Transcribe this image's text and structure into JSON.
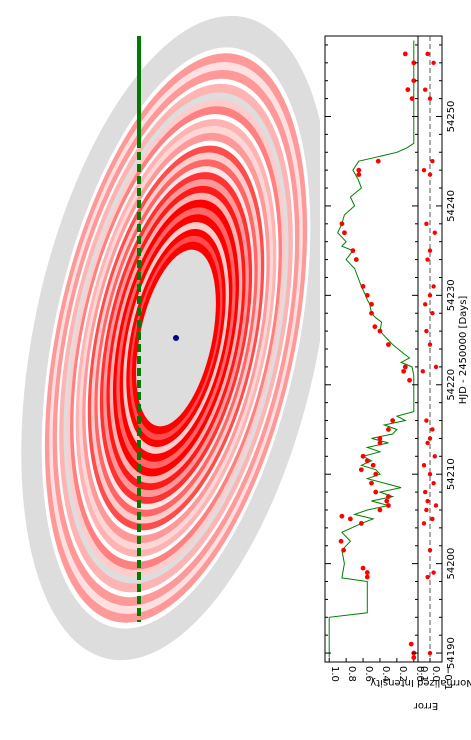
{
  "chart_data": [
    {
      "type": "diagram",
      "description_elements": [
        "ring-system",
        "star-dot",
        "transit-path"
      ],
      "colors": {
        "outer_disk": "#dddddd",
        "ring_light": "#ffd0d0",
        "ring_mid": "#ff9999",
        "ring_strong": "#ff0000",
        "ring_gap": "#ffffff",
        "star": "#000080",
        "path": "#007a00"
      }
    },
    {
      "type": "line",
      "orientation": "rotated-90",
      "xlabel": "HJD - 2450000 [Days]",
      "ylabel": "Normalized Intensity",
      "xlim": [
        54189,
        54259
      ],
      "ylim": [
        -0.05,
        1.05
      ],
      "x_ticks": [
        54190,
        54200,
        54210,
        54220,
        54230,
        54240,
        54250
      ],
      "y_ticks": [
        "0.0",
        "0.2",
        "0.4",
        "0.6",
        "0.8",
        "1.0"
      ],
      "series": [
        {
          "kind": "model",
          "color": "#008000",
          "x": [
            54189.5,
            54194.0,
            54194.5,
            54198.0,
            54198.4,
            54200.0,
            54201.5,
            54202.5,
            54203.5,
            54204.5,
            54205.0,
            54205.5,
            54206.0,
            54206.5,
            54207.0,
            54207.5,
            54208.0,
            54208.5,
            54209.0,
            54209.5,
            54210.0,
            54210.5,
            54211.0,
            54211.5,
            54212.0,
            54212.5,
            54213.0,
            54213.5,
            54214.0,
            54214.5,
            54215.0,
            54215.5,
            54216.0,
            54216.5,
            54217.0,
            54218.0,
            54219.0,
            54220.0,
            54221.0,
            54222.0,
            54222.5,
            54223.0,
            54223.5,
            54224.5,
            54225.0,
            54226.0,
            54227.0,
            54227.5,
            54228.0,
            54229.0,
            54229.5,
            54230.0,
            54231.0,
            54232.0,
            54233.0,
            54234.0,
            54235.0,
            54235.5,
            54236.0,
            54237.0,
            54238.0,
            54239.0,
            54240.0,
            54241.0,
            54242.0,
            54243.0,
            54244.0,
            54245.0,
            54245.5,
            54246.0,
            54246.5,
            54247.0,
            54258.5
          ],
          "y": [
            1.0,
            1.0,
            0.55,
            0.55,
            0.85,
            0.82,
            0.85,
            0.75,
            0.85,
            0.62,
            0.48,
            0.7,
            0.55,
            0.3,
            0.5,
            0.25,
            0.4,
            0.15,
            0.35,
            0.55,
            0.4,
            0.45,
            0.62,
            0.5,
            0.6,
            0.4,
            0.55,
            0.3,
            0.5,
            0.25,
            0.2,
            0.35,
            0.1,
            0.2,
            0.0,
            0.0,
            0.0,
            0.0,
            0.0,
            0.02,
            0.15,
            0.05,
            0.12,
            0.25,
            0.3,
            0.4,
            0.38,
            0.45,
            0.5,
            0.52,
            0.55,
            0.57,
            0.62,
            0.66,
            0.7,
            0.8,
            0.72,
            0.85,
            0.8,
            0.9,
            0.85,
            0.82,
            0.7,
            0.75,
            0.62,
            0.66,
            0.72,
            0.65,
            0.42,
            0.2,
            0.08,
            0.0,
            0.0
          ]
        },
        {
          "kind": "observations",
          "color": "#ff0000",
          "x": [
            54188.5,
            54189.5,
            54190.0,
            54191.0,
            54198.5,
            54199.0,
            54199.5,
            54201.5,
            54202.5,
            54204.5,
            54205.0,
            54205.3,
            54206.0,
            54206.5,
            54207.0,
            54207.5,
            54208.0,
            54209.0,
            54210.0,
            54210.5,
            54211.0,
            54211.5,
            54212.0,
            54213.5,
            54214.0,
            54215.0,
            54216.0,
            54220.5,
            54221.5,
            54222.0,
            54224.5,
            54226.0,
            54226.5,
            54228.0,
            54229.0,
            54230.0,
            54231.0,
            54234.0,
            54235.0,
            54237.0,
            54238.0,
            54243.5,
            54244.0,
            54245.0,
            54252.0,
            54253.0,
            54254.0,
            54256.0,
            54257.0
          ],
          "y": [
            0.03,
            0.0,
            0.0,
            0.03,
            0.55,
            0.55,
            0.6,
            0.83,
            0.86,
            0.62,
            0.75,
            0.85,
            0.4,
            0.3,
            0.32,
            0.3,
            0.45,
            0.5,
            0.45,
            0.62,
            0.48,
            0.55,
            0.6,
            0.4,
            0.4,
            0.3,
            0.25,
            0.05,
            0.12,
            0.1,
            0.3,
            0.4,
            0.46,
            0.5,
            0.5,
            0.55,
            0.6,
            0.68,
            0.72,
            0.82,
            0.85,
            0.65,
            0.65,
            0.42,
            0.02,
            0.07,
            0.0,
            0.0,
            0.1
          ]
        }
      ]
    },
    {
      "type": "scatter",
      "orientation": "rotated-90",
      "ylabel": "Error",
      "ylim": [
        -0.1,
        0.1
      ],
      "y_ticks": [
        "−0.1",
        "0.0",
        "0.1"
      ],
      "reference_line": 0.0,
      "x": [
        54190.0,
        54198.5,
        54199.0,
        54201.5,
        54204.5,
        54205.0,
        54206.0,
        54206.5,
        54207.0,
        54208.0,
        54209.0,
        54210.0,
        54211.0,
        54212.0,
        54213.5,
        54214.0,
        54215.0,
        54216.0,
        54221.5,
        54222.0,
        54224.5,
        54226.0,
        54228.0,
        54229.0,
        54230.0,
        54231.0,
        54234.0,
        54235.0,
        54237.0,
        54238.0,
        54243.5,
        54244.0,
        54245.0,
        54252.0,
        54253.0,
        54256.0,
        54257.0
      ],
      "y": [
        0.0,
        0.02,
        -0.03,
        0.0,
        0.05,
        -0.02,
        0.03,
        -0.05,
        0.02,
        0.04,
        -0.03,
        0.0,
        0.05,
        -0.04,
        0.02,
        0.0,
        -0.02,
        0.03,
        0.06,
        -0.05,
        0.0,
        0.03,
        -0.02,
        0.04,
        0.0,
        -0.03,
        0.02,
        0.0,
        -0.04,
        0.03,
        0.0,
        0.05,
        -0.02,
        0.0,
        0.04,
        -0.03,
        0.02
      ]
    }
  ]
}
